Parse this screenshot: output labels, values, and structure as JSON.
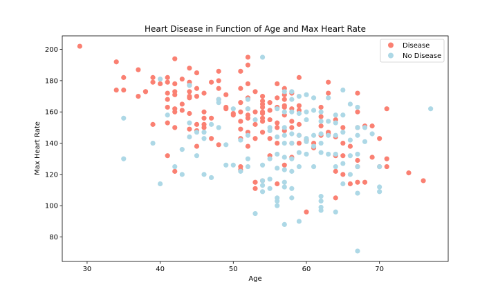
{
  "chart_data": {
    "type": "scatter",
    "title": "Heart Disease in Function of Age and Max Heart Rate",
    "xlabel": "Age",
    "ylabel": "Max Heart Rate",
    "xlim": [
      26.6,
      79.4
    ],
    "ylim": [
      64.35,
      208.65
    ],
    "xticks": [
      30,
      40,
      50,
      60,
      70
    ],
    "yticks": [
      80,
      100,
      120,
      140,
      160,
      180,
      200
    ],
    "legend_position": "top-right",
    "series": [
      {
        "name": "Disease",
        "color": "#fa8072",
        "points": [
          [
            29,
            202
          ],
          [
            34,
            192
          ],
          [
            34,
            174
          ],
          [
            35,
            182
          ],
          [
            35,
            174
          ],
          [
            37,
            187
          ],
          [
            37,
            170
          ],
          [
            38,
            173
          ],
          [
            38,
            173
          ],
          [
            39,
            182
          ],
          [
            39,
            179
          ],
          [
            39,
            152
          ],
          [
            40,
            178
          ],
          [
            41,
            182
          ],
          [
            41,
            172
          ],
          [
            41,
            179
          ],
          [
            41,
            168
          ],
          [
            41,
            163
          ],
          [
            41,
            153
          ],
          [
            41,
            132
          ],
          [
            42,
            194
          ],
          [
            42,
            178
          ],
          [
            42,
            173
          ],
          [
            42,
            171
          ],
          [
            42,
            162
          ],
          [
            42,
            160
          ],
          [
            42,
            150
          ],
          [
            42,
            122
          ],
          [
            43,
            181
          ],
          [
            43,
            165
          ],
          [
            43,
            161
          ],
          [
            44,
            188
          ],
          [
            44,
            179
          ],
          [
            44,
            177
          ],
          [
            44,
            173
          ],
          [
            44,
            170
          ],
          [
            44,
            169
          ],
          [
            44,
            159
          ],
          [
            44,
            149
          ],
          [
            45,
            185
          ],
          [
            45,
            175
          ],
          [
            45,
            170
          ],
          [
            45,
            152
          ],
          [
            45,
            148
          ],
          [
            45,
            138
          ],
          [
            46,
            172
          ],
          [
            46,
            160
          ],
          [
            46,
            156
          ],
          [
            46,
            152
          ],
          [
            46,
            150
          ],
          [
            47,
            179
          ],
          [
            47,
            156
          ],
          [
            47,
            143
          ],
          [
            48,
            186
          ],
          [
            48,
            180
          ],
          [
            48,
            175
          ],
          [
            48,
            168
          ],
          [
            48,
            139
          ],
          [
            49,
            171
          ],
          [
            49,
            162
          ],
          [
            49,
            163
          ],
          [
            50,
            159
          ],
          [
            50,
            158
          ],
          [
            51,
            186
          ],
          [
            51,
            175
          ],
          [
            51,
            166
          ],
          [
            51,
            160
          ],
          [
            51,
            154
          ],
          [
            51,
            149
          ],
          [
            51,
            143
          ],
          [
            51,
            125
          ],
          [
            51,
            123
          ],
          [
            52,
            195
          ],
          [
            52,
            190
          ],
          [
            52,
            178
          ],
          [
            52,
            169
          ],
          [
            52,
            162
          ],
          [
            52,
            158
          ],
          [
            52,
            156
          ],
          [
            52,
            147
          ],
          [
            52,
            138
          ],
          [
            53,
            173
          ],
          [
            53,
            160
          ],
          [
            53,
            152
          ],
          [
            53,
            143
          ],
          [
            53,
            115
          ],
          [
            53,
            111
          ],
          [
            54,
            170
          ],
          [
            54,
            167
          ],
          [
            54,
            165
          ],
          [
            54,
            163
          ],
          [
            54,
            160
          ],
          [
            54,
            159
          ],
          [
            54,
            156
          ],
          [
            54,
            154
          ],
          [
            54,
            147
          ],
          [
            54,
            116
          ],
          [
            55,
            166
          ],
          [
            55,
            161
          ],
          [
            55,
            155
          ],
          [
            55,
            143
          ],
          [
            55,
            132
          ],
          [
            56,
            178
          ],
          [
            56,
            169
          ],
          [
            56,
            163
          ],
          [
            56,
            153
          ],
          [
            56,
            150
          ],
          [
            56,
            140
          ],
          [
            56,
            114
          ],
          [
            57,
            175
          ],
          [
            57,
            171
          ],
          [
            57,
            168
          ],
          [
            57,
            164
          ],
          [
            57,
            163
          ],
          [
            57,
            158
          ],
          [
            57,
            148
          ],
          [
            57,
            126
          ],
          [
            58,
            172
          ],
          [
            58,
            162
          ],
          [
            58,
            154
          ],
          [
            58,
            150
          ],
          [
            58,
            140
          ],
          [
            58,
            131
          ],
          [
            59,
            182
          ],
          [
            59,
            164
          ],
          [
            59,
            161
          ],
          [
            59,
            152
          ],
          [
            59,
            145
          ],
          [
            59,
            140
          ],
          [
            60,
            96
          ],
          [
            60,
            142
          ],
          [
            61,
            140
          ],
          [
            61,
            137
          ],
          [
            62,
            163
          ],
          [
            62,
            157
          ],
          [
            62,
            151
          ],
          [
            62,
            145
          ],
          [
            63,
            179
          ],
          [
            63,
            172
          ],
          [
            63,
            147
          ],
          [
            63,
            146
          ],
          [
            64,
            155
          ],
          [
            64,
            144
          ],
          [
            64,
            132
          ],
          [
            64,
            122
          ],
          [
            64,
            105
          ],
          [
            65,
            150
          ],
          [
            65,
            140
          ],
          [
            65,
            132
          ],
          [
            65,
            120
          ],
          [
            66,
            138
          ],
          [
            66,
            114
          ],
          [
            67,
            172
          ],
          [
            67,
            160
          ],
          [
            67,
            150
          ],
          [
            67,
            129
          ],
          [
            67,
            125
          ],
          [
            67,
            115
          ],
          [
            68,
            151
          ],
          [
            68,
            115
          ],
          [
            69,
            151
          ],
          [
            69,
            131
          ],
          [
            70,
            143
          ],
          [
            70,
            125
          ],
          [
            71,
            162
          ],
          [
            71,
            130
          ],
          [
            71,
            125
          ],
          [
            74,
            121
          ],
          [
            76,
            116
          ]
        ]
      },
      {
        "name": "No Disease",
        "color": "#add8e6",
        "points": [
          [
            35,
            156
          ],
          [
            35,
            130
          ],
          [
            39,
            140
          ],
          [
            40,
            181
          ],
          [
            40,
            114
          ],
          [
            41,
            158
          ],
          [
            42,
            125
          ],
          [
            43,
            136
          ],
          [
            43,
            120
          ],
          [
            44,
            177
          ],
          [
            44,
            153
          ],
          [
            44,
            144
          ],
          [
            45,
            147
          ],
          [
            45,
            132
          ],
          [
            46,
            147
          ],
          [
            46,
            120
          ],
          [
            46,
            143
          ],
          [
            47,
            152
          ],
          [
            47,
            118
          ],
          [
            48,
            168
          ],
          [
            48,
            166
          ],
          [
            48,
            150
          ],
          [
            49,
            139
          ],
          [
            49,
            126
          ],
          [
            50,
            162
          ],
          [
            50,
            126
          ],
          [
            51,
            142
          ],
          [
            51,
            122
          ],
          [
            52,
            168
          ],
          [
            52,
            162
          ],
          [
            52,
            145
          ],
          [
            52,
            130
          ],
          [
            52,
            125
          ],
          [
            53,
            155
          ],
          [
            53,
            95
          ],
          [
            54,
            195
          ],
          [
            54,
            126
          ],
          [
            54,
            116
          ],
          [
            54,
            113
          ],
          [
            54,
            109
          ],
          [
            55,
            150
          ],
          [
            55,
            148
          ],
          [
            55,
            130
          ],
          [
            55,
            117
          ],
          [
            55,
            111
          ],
          [
            56,
            162
          ],
          [
            56,
            144
          ],
          [
            56,
            133
          ],
          [
            56,
            124
          ],
          [
            56,
            105
          ],
          [
            56,
            103
          ],
          [
            56,
            100
          ],
          [
            57,
            173
          ],
          [
            57,
            160
          ],
          [
            57,
            150
          ],
          [
            57,
            145
          ],
          [
            57,
            140
          ],
          [
            57,
            131
          ],
          [
            57,
            123
          ],
          [
            57,
            115
          ],
          [
            57,
            112
          ],
          [
            57,
            88
          ],
          [
            58,
            173
          ],
          [
            58,
            168
          ],
          [
            58,
            160
          ],
          [
            58,
            146
          ],
          [
            58,
            140
          ],
          [
            58,
            130
          ],
          [
            58,
            122
          ],
          [
            58,
            105
          ],
          [
            58,
            111
          ],
          [
            59,
            170
          ],
          [
            59,
            159
          ],
          [
            59,
            145
          ],
          [
            59,
            134
          ],
          [
            59,
            125
          ],
          [
            59,
            90
          ],
          [
            60,
            171
          ],
          [
            60,
            160
          ],
          [
            60,
            155
          ],
          [
            60,
            143
          ],
          [
            60,
            141
          ],
          [
            60,
            133
          ],
          [
            61,
            169
          ],
          [
            61,
            161
          ],
          [
            61,
            145
          ],
          [
            61,
            138
          ],
          [
            61,
            125
          ],
          [
            62,
            160
          ],
          [
            62,
            154
          ],
          [
            62,
            146
          ],
          [
            62,
            140
          ],
          [
            62,
            134
          ],
          [
            62,
            106
          ],
          [
            62,
            103
          ],
          [
            62,
            99
          ],
          [
            62,
            97
          ],
          [
            63,
            169
          ],
          [
            63,
            154
          ],
          [
            63,
            145
          ],
          [
            63,
            133
          ],
          [
            64,
            158
          ],
          [
            64,
            153
          ],
          [
            64,
            145
          ],
          [
            64,
            133
          ],
          [
            64,
            125
          ],
          [
            64,
            96
          ],
          [
            65,
            174
          ],
          [
            65,
            158
          ],
          [
            65,
            147
          ],
          [
            65,
            127
          ],
          [
            65,
            114
          ],
          [
            66,
            165
          ],
          [
            66,
            142
          ],
          [
            66,
            132
          ],
          [
            66,
            120
          ],
          [
            67,
            163
          ],
          [
            67,
            150
          ],
          [
            67,
            145
          ],
          [
            67,
            133
          ],
          [
            67,
            125
          ],
          [
            67,
            108
          ],
          [
            67,
            71
          ],
          [
            68,
            150
          ],
          [
            68,
            141
          ],
          [
            69,
            146
          ],
          [
            70,
            125
          ],
          [
            70,
            112
          ],
          [
            70,
            109
          ],
          [
            77,
            162
          ]
        ]
      }
    ]
  }
}
